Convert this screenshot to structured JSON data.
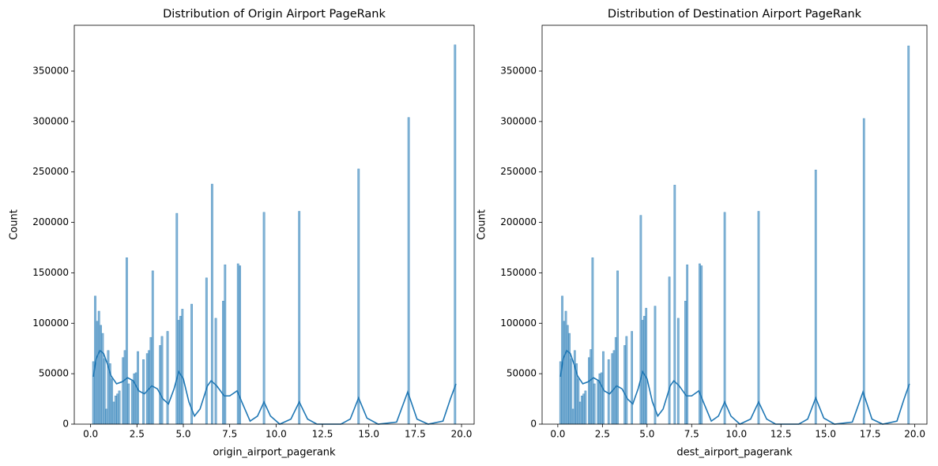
{
  "chart_data": [
    {
      "type": "histogram",
      "title": "Distribution of Origin Airport PageRank",
      "x_label": "origin_airport_pagerank",
      "y_label": "Count",
      "color": "#1f77b4",
      "bins": [
        0.1,
        0.2,
        0.3,
        0.4,
        0.5,
        0.6,
        0.7,
        0.8,
        0.9,
        1.0,
        1.1,
        1.2,
        1.3,
        1.4,
        1.5,
        1.6,
        1.7,
        1.8,
        1.9,
        2.0,
        2.1,
        2.2,
        2.3,
        2.4,
        2.5,
        2.6,
        2.8,
        2.9,
        3.0,
        3.1,
        3.2,
        3.3,
        3.4,
        3.7,
        3.8,
        3.9,
        4.1,
        4.2,
        4.6,
        4.7,
        4.8,
        4.9,
        5.0,
        5.4,
        5.5,
        6.2,
        6.3,
        6.5,
        6.6,
        6.7,
        6.8,
        7.1,
        7.2,
        7.3,
        7.9,
        8.0,
        8.1,
        9.3,
        9.4,
        11.2,
        11.3,
        14.4,
        14.5,
        17.1,
        17.2,
        19.6,
        19.7
      ],
      "values": [
        62000,
        127000,
        102000,
        112000,
        98000,
        90000,
        65000,
        15000,
        73000,
        60000,
        45000,
        22000,
        28000,
        30000,
        33000,
        0,
        66000,
        73000,
        165000,
        40000,
        0,
        43000,
        50000,
        51000,
        72000,
        0,
        64000,
        0,
        70000,
        73000,
        86000,
        152000,
        0,
        78000,
        87000,
        0,
        92000,
        0,
        209000,
        103000,
        107000,
        114000,
        0,
        119000,
        0,
        145000,
        0,
        238000,
        0,
        105000,
        0,
        122000,
        158000,
        0,
        159000,
        157000,
        0,
        210000,
        0,
        211000,
        0,
        253000,
        0,
        304000,
        0,
        376000
      ],
      "kde": {
        "color": "#1f77b4",
        "x": [
          0.15,
          0.3,
          0.5,
          0.7,
          0.9,
          1.1,
          1.4,
          1.7,
          2.0,
          2.3,
          2.6,
          2.9,
          3.3,
          3.6,
          3.9,
          4.2,
          4.5,
          4.75,
          5.0,
          5.3,
          5.6,
          5.9,
          6.3,
          6.5,
          6.8,
          7.2,
          7.5,
          7.9,
          8.2,
          8.6,
          9.0,
          9.35,
          9.7,
          10.2,
          10.8,
          11.25,
          11.7,
          12.2,
          13.5,
          14.0,
          14.45,
          14.9,
          15.5,
          16.5,
          17.1,
          17.6,
          18.2,
          19.0,
          19.4,
          19.7
        ],
        "values": [
          47000,
          65000,
          73000,
          70000,
          60000,
          48000,
          40000,
          42000,
          46000,
          43000,
          33000,
          30000,
          38000,
          35000,
          25000,
          20000,
          35000,
          52000,
          45000,
          22000,
          8000,
          15000,
          38000,
          43000,
          38000,
          28000,
          28000,
          33000,
          20000,
          3000,
          8000,
          22000,
          8000,
          0,
          5000,
          22000,
          5000,
          0,
          0,
          5000,
          26000,
          6000,
          0,
          2000,
          32000,
          5000,
          0,
          3000,
          25000,
          40000
        ]
      },
      "xlim": [
        -0.88,
        20.68
      ],
      "ylim": [
        0,
        395400
      ],
      "xticks": [
        {
          "value": 0,
          "label": "0.0"
        },
        2.5,
        {
          "value": 5,
          "label": "5.0"
        },
        7.5,
        {
          "value": 10,
          "label": "10.0"
        },
        12.5,
        {
          "value": 15,
          "label": "15.0"
        },
        17.5,
        {
          "value": 20,
          "label": "20.0"
        }
      ],
      "yticks": [
        0,
        50000,
        100000,
        150000,
        200000,
        250000,
        300000,
        350000
      ]
    },
    {
      "type": "histogram",
      "title": "Distribution of Destination Airport PageRank",
      "x_label": "dest_airport_pagerank",
      "y_label": "Count",
      "color": "#1f77b4",
      "bins": [
        0.1,
        0.2,
        0.3,
        0.4,
        0.5,
        0.6,
        0.7,
        0.8,
        0.9,
        1.0,
        1.1,
        1.2,
        1.3,
        1.4,
        1.5,
        1.6,
        1.7,
        1.8,
        1.9,
        2.0,
        2.1,
        2.2,
        2.3,
        2.4,
        2.5,
        2.6,
        2.8,
        2.9,
        3.0,
        3.1,
        3.2,
        3.3,
        3.4,
        3.7,
        3.8,
        3.9,
        4.1,
        4.2,
        4.6,
        4.7,
        4.8,
        4.9,
        5.0,
        5.4,
        5.5,
        6.2,
        6.3,
        6.5,
        6.6,
        6.7,
        6.8,
        7.1,
        7.2,
        7.3,
        7.9,
        8.0,
        8.1,
        9.3,
        9.4,
        11.2,
        11.3,
        14.4,
        14.5,
        17.1,
        17.2,
        19.6,
        19.7
      ],
      "values": [
        62000,
        127000,
        102000,
        112000,
        98000,
        90000,
        65000,
        15000,
        73000,
        60000,
        45000,
        22000,
        28000,
        30000,
        33000,
        0,
        66000,
        74000,
        165000,
        40000,
        0,
        43000,
        50000,
        51000,
        72000,
        0,
        64000,
        0,
        70000,
        73000,
        86000,
        152000,
        0,
        78000,
        87000,
        0,
        92000,
        0,
        207000,
        103000,
        107000,
        115000,
        0,
        117000,
        0,
        146000,
        0,
        237000,
        0,
        105000,
        0,
        122000,
        158000,
        0,
        159000,
        157000,
        0,
        210000,
        0,
        211000,
        0,
        252000,
        0,
        303000,
        0,
        375000
      ],
      "kde": {
        "color": "#1f77b4",
        "x": [
          0.15,
          0.3,
          0.5,
          0.7,
          0.9,
          1.1,
          1.4,
          1.7,
          2.0,
          2.3,
          2.6,
          2.9,
          3.3,
          3.6,
          3.9,
          4.2,
          4.5,
          4.75,
          5.0,
          5.3,
          5.6,
          5.9,
          6.3,
          6.5,
          6.8,
          7.2,
          7.5,
          7.9,
          8.2,
          8.6,
          9.0,
          9.35,
          9.7,
          10.2,
          10.8,
          11.25,
          11.7,
          12.2,
          13.5,
          14.0,
          14.45,
          14.9,
          15.5,
          16.5,
          17.1,
          17.6,
          18.2,
          19.0,
          19.4,
          19.7
        ],
        "values": [
          47000,
          65000,
          73000,
          70000,
          60000,
          48000,
          40000,
          42000,
          46000,
          43000,
          33000,
          30000,
          38000,
          35000,
          25000,
          20000,
          35000,
          52000,
          45000,
          22000,
          8000,
          15000,
          38000,
          43000,
          38000,
          28000,
          28000,
          33000,
          20000,
          3000,
          8000,
          22000,
          8000,
          0,
          5000,
          22000,
          5000,
          0,
          0,
          5000,
          26000,
          6000,
          0,
          2000,
          32000,
          5000,
          0,
          3000,
          25000,
          40000
        ]
      },
      "xlim": [
        -0.88,
        20.68
      ],
      "ylim": [
        0,
        395400
      ],
      "xticks": [
        {
          "value": 0,
          "label": "0.0"
        },
        2.5,
        {
          "value": 5,
          "label": "5.0"
        },
        7.5,
        {
          "value": 10,
          "label": "10.0"
        },
        12.5,
        {
          "value": 15,
          "label": "15.0"
        },
        17.5,
        {
          "value": 20,
          "label": "20.0"
        }
      ],
      "yticks": [
        0,
        50000,
        100000,
        150000,
        200000,
        250000,
        300000,
        350000
      ]
    }
  ]
}
